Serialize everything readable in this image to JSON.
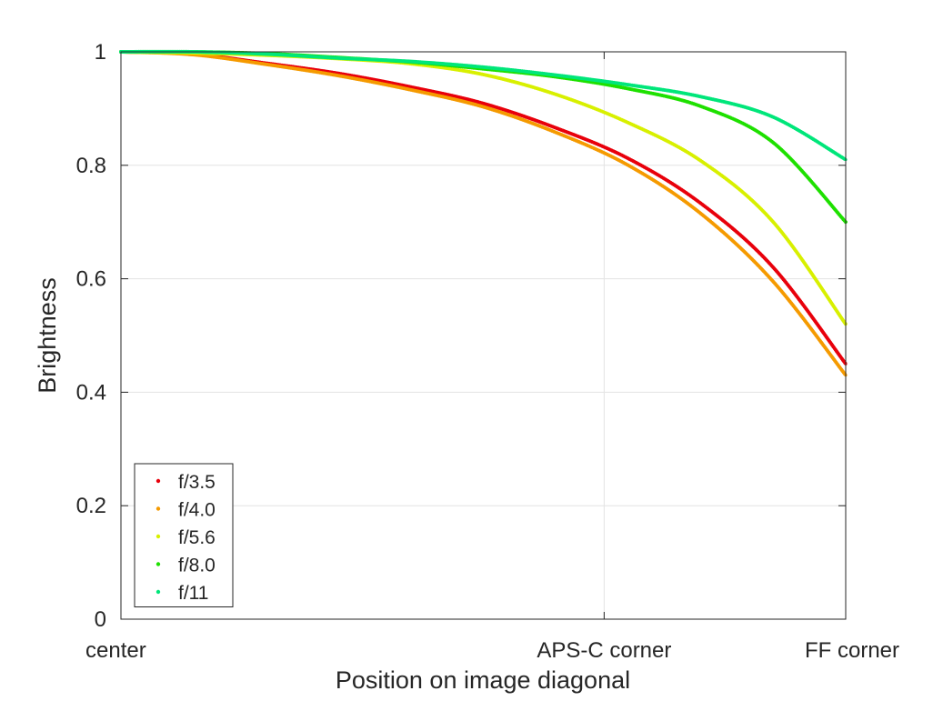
{
  "chart_data": {
    "type": "line",
    "title": "",
    "xlabel": "Position on image diagonal",
    "ylabel": "Brightness",
    "xlim": [
      0,
      1
    ],
    "ylim": [
      0,
      1
    ],
    "x_ticks": [
      {
        "value": 0,
        "label": "center"
      },
      {
        "value": 0.6667,
        "label": "APS-C corner"
      },
      {
        "value": 1,
        "label": "FF corner"
      }
    ],
    "y_ticks": [
      {
        "value": 0,
        "label": "0"
      },
      {
        "value": 0.2,
        "label": "0.2"
      },
      {
        "value": 0.4,
        "label": "0.4"
      },
      {
        "value": 0.6,
        "label": "0.6"
      },
      {
        "value": 0.8,
        "label": "0.8"
      },
      {
        "value": 1,
        "label": "1"
      }
    ],
    "grid": true,
    "legend_position": "bottom-left",
    "x": [
      0,
      0.1,
      0.2,
      0.3,
      0.4,
      0.5,
      0.6,
      0.7,
      0.8,
      0.9,
      1.0
    ],
    "series": [
      {
        "name": "f/3.5",
        "color": "#e8000b",
        "values": [
          1.0,
          0.996,
          0.98,
          0.962,
          0.938,
          0.909,
          0.866,
          0.812,
          0.733,
          0.62,
          0.45
        ]
      },
      {
        "name": "f/4.0",
        "color": "#f59a00",
        "values": [
          1.0,
          0.995,
          0.978,
          0.958,
          0.933,
          0.903,
          0.858,
          0.8,
          0.715,
          0.595,
          0.43
        ]
      },
      {
        "name": "f/5.6",
        "color": "#d8f000",
        "values": [
          1.0,
          0.998,
          0.994,
          0.988,
          0.979,
          0.96,
          0.925,
          0.875,
          0.808,
          0.7,
          0.52
        ]
      },
      {
        "name": "f/8.0",
        "color": "#1ee000",
        "values": [
          1.0,
          1.0,
          0.997,
          0.99,
          0.982,
          0.97,
          0.956,
          0.935,
          0.904,
          0.84,
          0.7
        ]
      },
      {
        "name": "f/11",
        "color": "#00e67a",
        "values": [
          1.0,
          1.0,
          0.996,
          0.989,
          0.983,
          0.973,
          0.959,
          0.942,
          0.921,
          0.885,
          0.81
        ]
      }
    ]
  }
}
